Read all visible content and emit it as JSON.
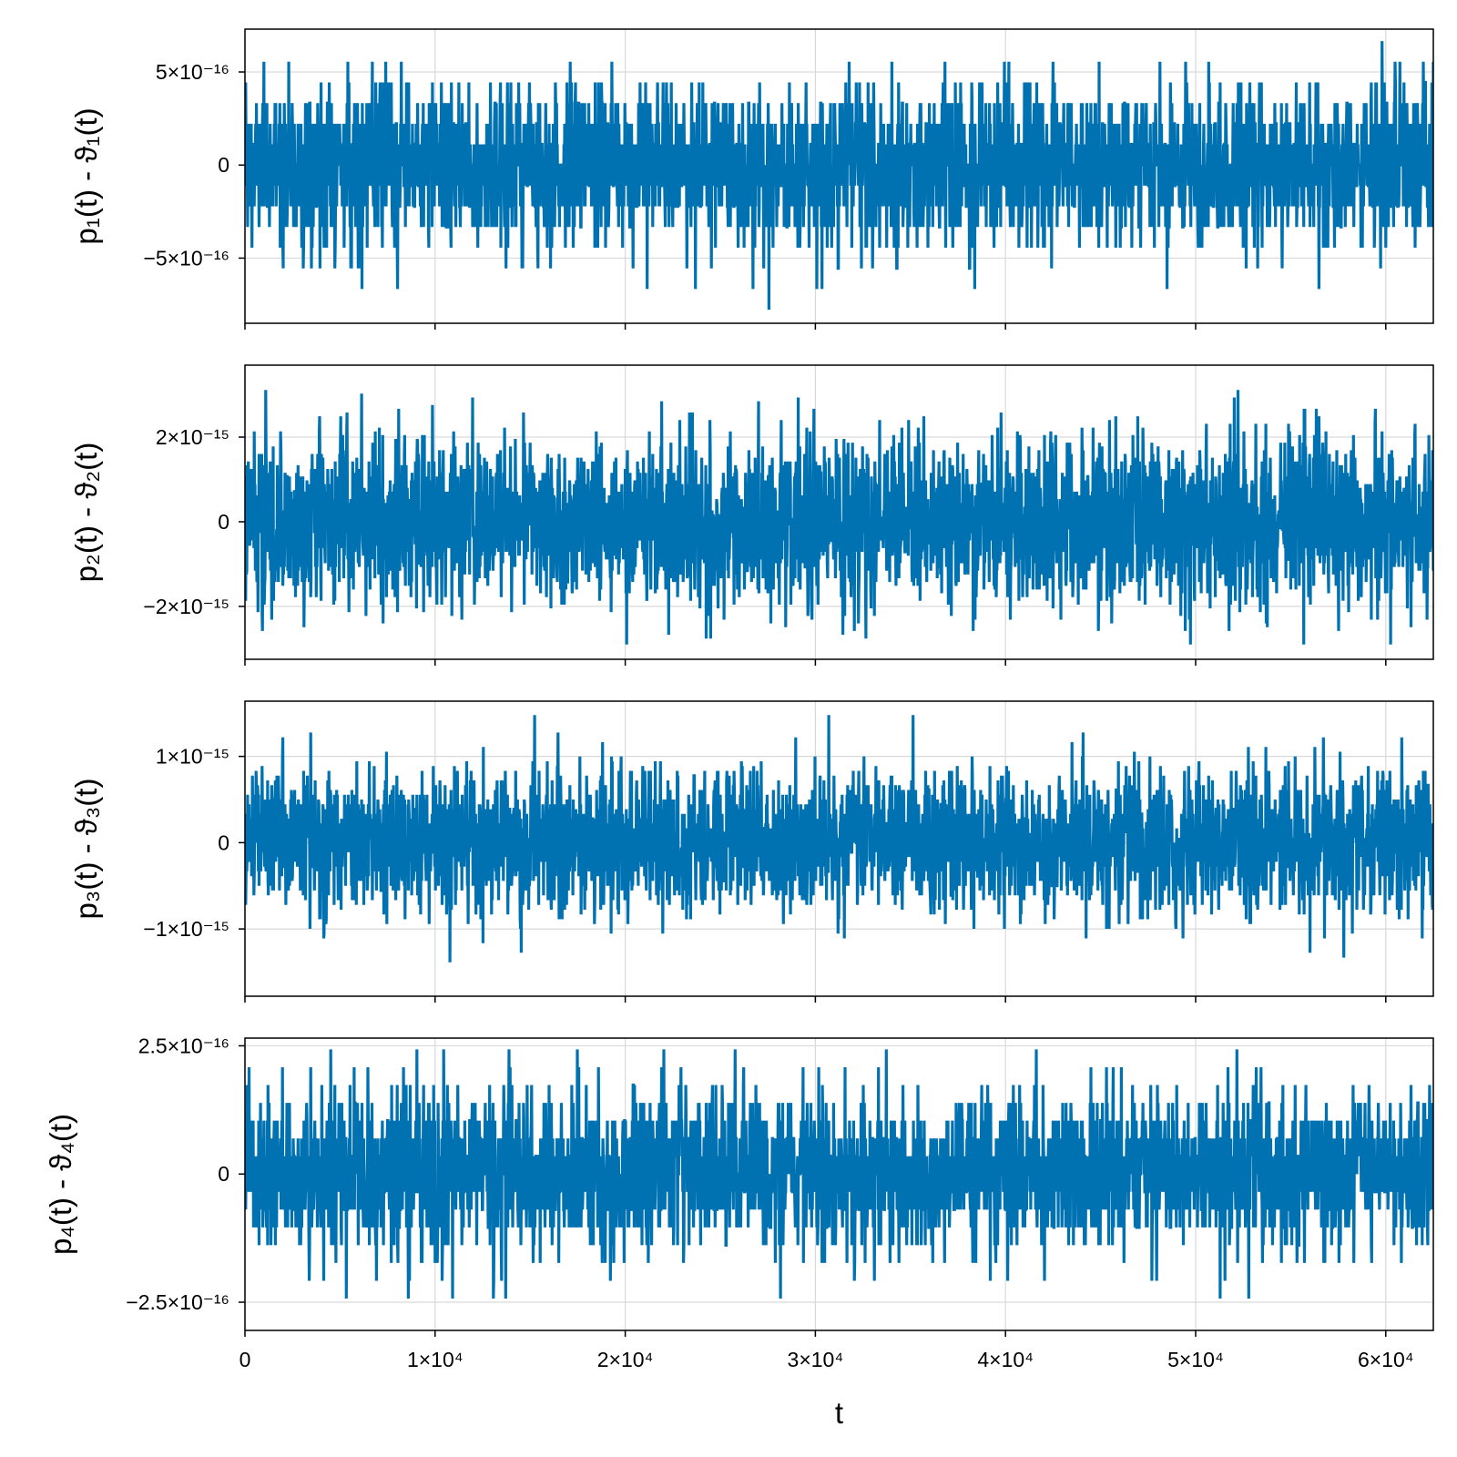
{
  "chart_data": [
    {
      "type": "line",
      "ylabel": "p₁(t) - ϑ₁(t)",
      "xlim": [
        0,
        62500
      ],
      "ylim": [
        -8.5e-16,
        7.3e-16
      ],
      "yticks": [
        {
          "value": -5e-16,
          "label": "−5×10⁻¹⁶"
        },
        {
          "value": 0,
          "label": "0"
        },
        {
          "value": 5e-16,
          "label": "5×10⁻¹⁶"
        }
      ],
      "series": [
        {
          "color": "#0072b2",
          "noise_sd": 2.2e-16,
          "quantum": 1.11e-16,
          "min": -7.8e-16,
          "max": 6.7e-16
        }
      ]
    },
    {
      "type": "line",
      "ylabel": "p₂(t) - ϑ₂(t)",
      "xlim": [
        0,
        62500
      ],
      "ylim": [
        -3.25e-15,
        3.7e-15
      ],
      "yticks": [
        {
          "value": -2e-15,
          "label": "−2×10⁻¹⁵"
        },
        {
          "value": 0,
          "label": "0"
        },
        {
          "value": 2e-15,
          "label": "2×10⁻¹⁵"
        }
      ],
      "series": [
        {
          "color": "#0072b2",
          "noise_sd": 1e-15,
          "quantum": 8.9e-17,
          "min": -2.9e-15,
          "max": 3.4e-15
        }
      ]
    },
    {
      "type": "line",
      "ylabel": "p₃(t) - ϑ₃(t)",
      "xlim": [
        0,
        62500
      ],
      "ylim": [
        -1.78e-15,
        1.64e-15
      ],
      "yticks": [
        {
          "value": -1e-15,
          "label": "−1×10⁻¹⁵"
        },
        {
          "value": 0,
          "label": "0"
        },
        {
          "value": 1e-15,
          "label": "1×10⁻¹⁵"
        }
      ],
      "series": [
        {
          "color": "#0072b2",
          "noise_sd": 4.2e-16,
          "quantum": 5.55e-17,
          "min": -1.62e-15,
          "max": 1.48e-15
        }
      ]
    },
    {
      "type": "line",
      "xlabel": "t",
      "ylabel": "p₄(t) - ϑ₄(t)",
      "xlim": [
        0,
        62500
      ],
      "ylim": [
        -3.05e-16,
        2.65e-16
      ],
      "xticks": [
        {
          "value": 0,
          "label": "0"
        },
        {
          "value": 10000,
          "label": "1×10⁴"
        },
        {
          "value": 20000,
          "label": "2×10⁴"
        },
        {
          "value": 30000,
          "label": "3×10⁴"
        },
        {
          "value": 40000,
          "label": "4×10⁴"
        },
        {
          "value": 50000,
          "label": "5×10⁴"
        },
        {
          "value": 60000,
          "label": "6×10⁴"
        }
      ],
      "yticks": [
        {
          "value": -2.5e-16,
          "label": "−2.5×10⁻¹⁶"
        },
        {
          "value": 0,
          "label": "0"
        },
        {
          "value": 2.5e-16,
          "label": "2.5×10⁻¹⁶"
        }
      ],
      "series": [
        {
          "color": "#0072b2",
          "noise_sd": 8e-17,
          "quantum": 3.47e-17,
          "min": -2.78e-16,
          "max": 2.43e-16
        }
      ]
    }
  ],
  "grid": true
}
